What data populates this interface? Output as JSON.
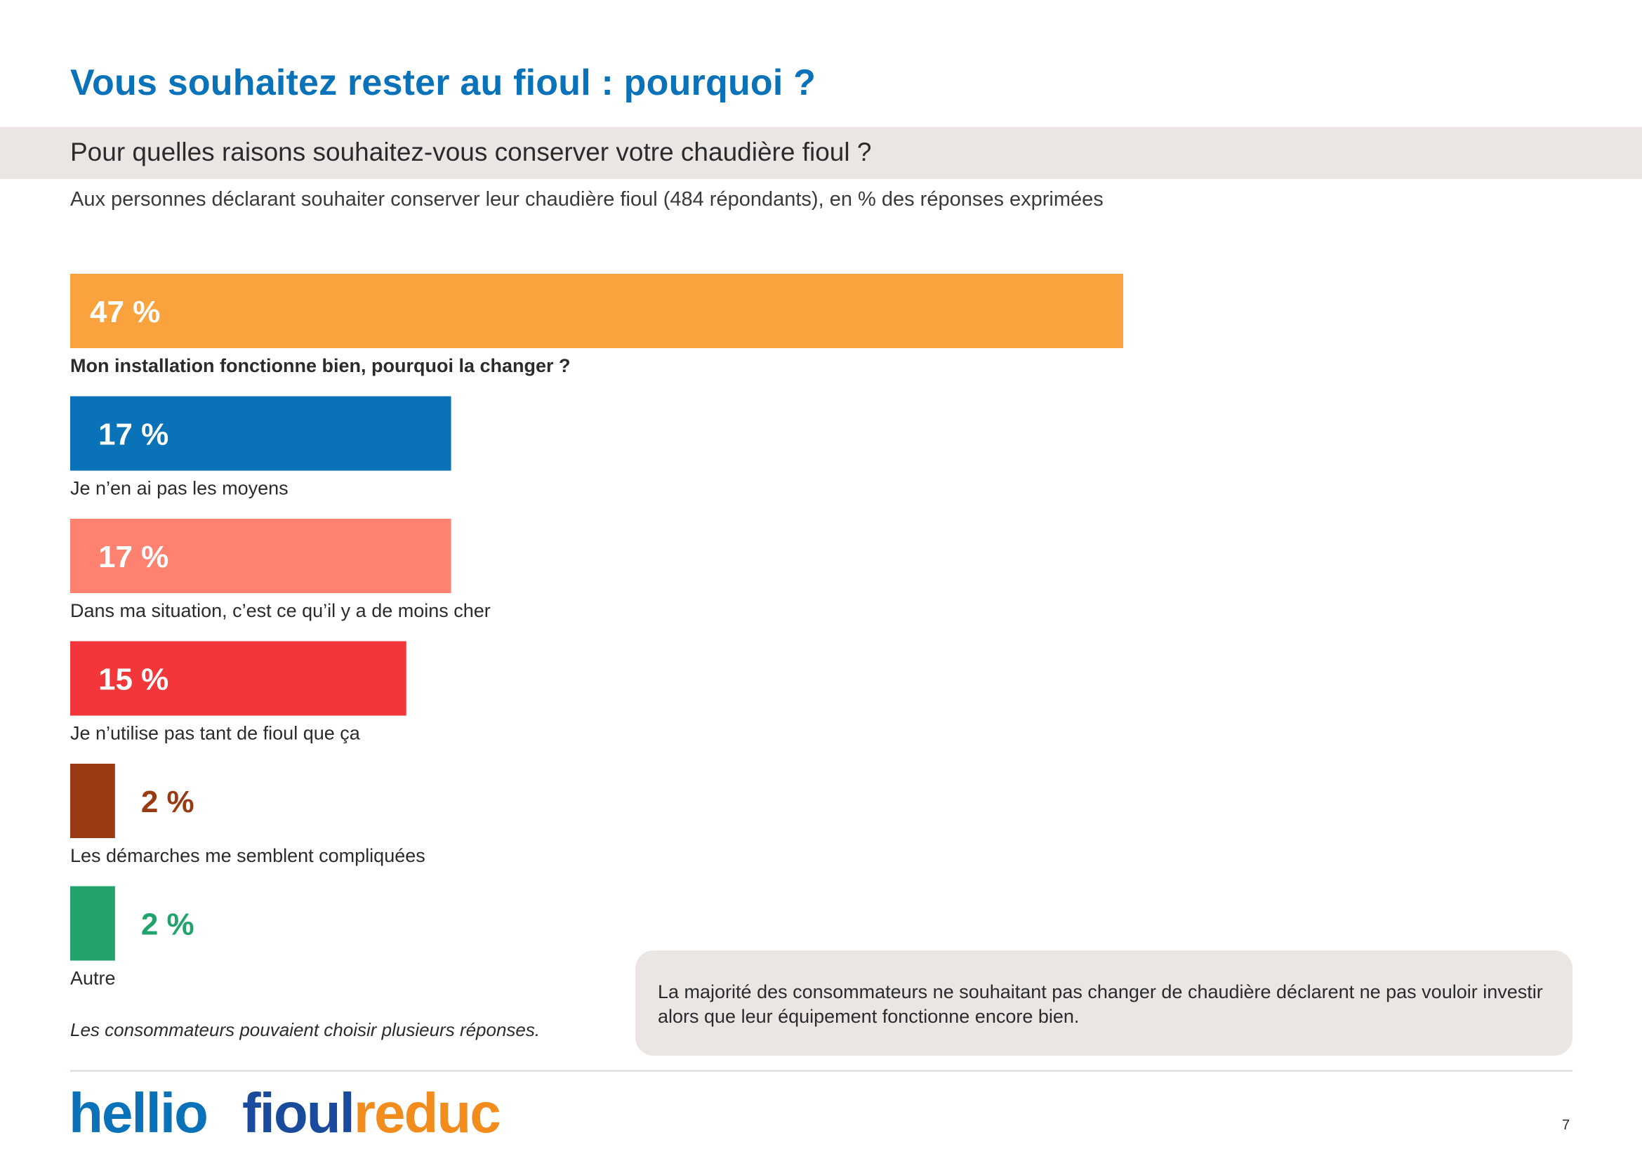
{
  "title": "Vous souhaitez rester au fioul : pourquoi ?",
  "question": "Pour quelles raisons souhaitez-vous conserver votre chaudière fioul ?",
  "subtitle": "Aux personnes déclarant souhaiter conserver leur chaudière fioul (484 répondants), en % des réponses exprimées",
  "chart_data": {
    "type": "bar",
    "orientation": "horizontal",
    "categories": [
      "Mon installation fonctionne bien, pourquoi la changer ?",
      "Je n’en ai pas les moyens",
      "Dans ma situation, c’est ce qu’il y a de moins cher",
      "Je n’utilise pas tant de fioul que ça",
      "Les démarches me semblent compliquées",
      "Autre"
    ],
    "values": [
      47,
      17,
      17,
      15,
      2,
      2
    ],
    "value_labels": [
      "47 %",
      "17 %",
      "17 %",
      "15 %",
      "2 %",
      "2 %"
    ],
    "colors": [
      "#faa23e",
      "#0a72b8",
      "#ff8270",
      "#f2363a",
      "#9a3a12",
      "#22a36b"
    ],
    "bold_category": 0,
    "grid": false,
    "legend": "none"
  },
  "footnote": "Les consommateurs pouvaient choisir plusieurs réponses.",
  "callout": "La majorité des consommateurs ne souhaitant pas changer de chaudière déclarent ne pas vouloir investir alors que leur équipement fonctionne encore bien.",
  "logos": {
    "hellio": "hellio",
    "fioulreduc_part1": "fioul",
    "fioulreduc_part2": "reduc"
  },
  "page_number": "7"
}
